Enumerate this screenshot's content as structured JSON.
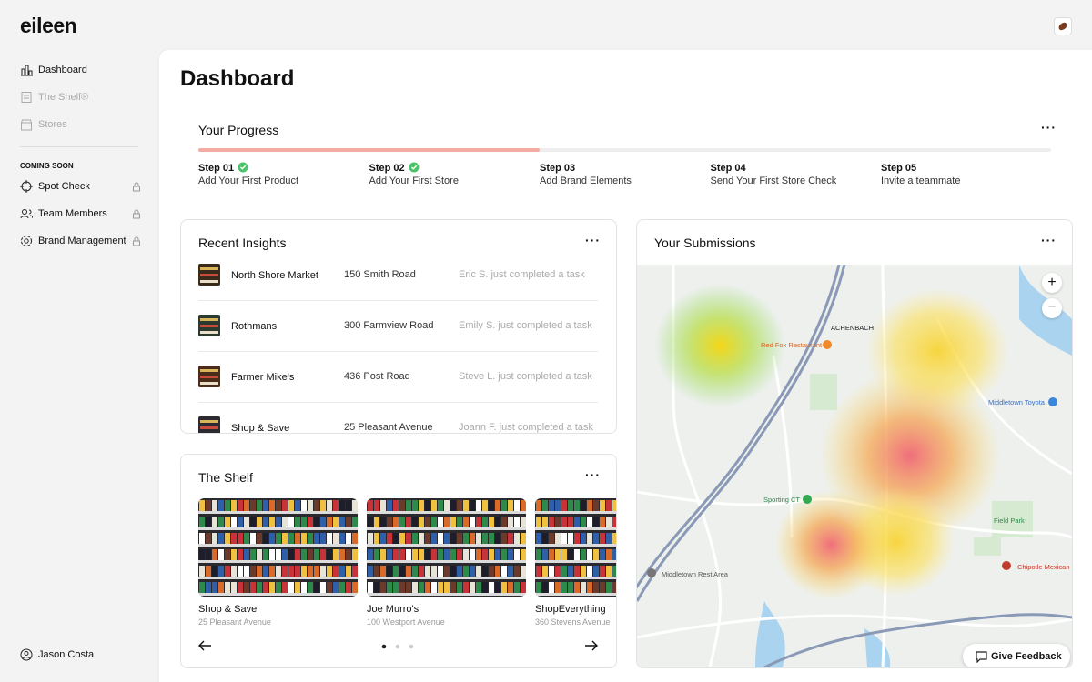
{
  "sidebar": {
    "brand": "eileen",
    "nav": [
      "Dashboard",
      "The Shelf®",
      "Stores"
    ],
    "section": "COMING SOON",
    "soon": [
      "Spot Check",
      "Team Members",
      "Brand Management"
    ],
    "user": "Jason Costa"
  },
  "header": {
    "title": "Dashboard"
  },
  "progress": {
    "title": "Your Progress",
    "percent": 40,
    "steps": [
      {
        "step": "Step 01",
        "label": "Add Your First Product",
        "done": true
      },
      {
        "step": "Step 02",
        "label": "Add Your First Store",
        "done": true
      },
      {
        "step": "Step 03",
        "label": "Add Brand Elements",
        "done": false
      },
      {
        "step": "Step 04",
        "label": "Send Your First Store Check",
        "done": false
      },
      {
        "step": "Step 05",
        "label": "Invite a teammate",
        "done": false
      }
    ]
  },
  "insights": {
    "title": "Recent Insights",
    "rows": [
      [
        "North Shore Market",
        "150 Smith Road",
        "Eric S. just completed a task"
      ],
      [
        "Rothmans",
        "300 Farmview Road",
        "Emily S. just completed a task"
      ],
      [
        "Farmer Mike's",
        "436 Post Road",
        "Steve L. just completed a task"
      ],
      [
        "Shop & Save",
        "25 Pleasant Avenue",
        "Joann F. just completed a task"
      ]
    ]
  },
  "shelf": {
    "title": "The Shelf",
    "items": [
      {
        "name": "Shop & Save",
        "address": "25 Pleasant Avenue"
      },
      {
        "name": "Joe Murro's",
        "address": "100 Westport Avenue"
      },
      {
        "name": "ShopEverything",
        "address": "360 Stevens Avenue"
      }
    ]
  },
  "submissions": {
    "title": "Your Submissions",
    "map_labels": [
      "ACHENBACH",
      "Red Fox Restaurant",
      "Middletown Toyota",
      "Sporting CT",
      "Field Park",
      "Chipotle Mexican",
      "Middletown Rest Area"
    ],
    "feedback": "Give Feedback"
  }
}
